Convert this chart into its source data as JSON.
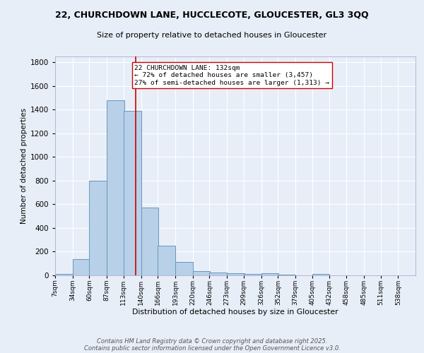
{
  "title_line1": "22, CHURCHDOWN LANE, HUCCLECOTE, GLOUCESTER, GL3 3QQ",
  "title_line2": "Size of property relative to detached houses in Gloucester",
  "xlabel": "Distribution of detached houses by size in Gloucester",
  "ylabel": "Number of detached properties",
  "bin_labels": [
    "7sqm",
    "34sqm",
    "60sqm",
    "87sqm",
    "113sqm",
    "140sqm",
    "166sqm",
    "193sqm",
    "220sqm",
    "246sqm",
    "273sqm",
    "299sqm",
    "326sqm",
    "352sqm",
    "379sqm",
    "405sqm",
    "432sqm",
    "458sqm",
    "485sqm",
    "511sqm",
    "538sqm"
  ],
  "bar_heights": [
    10,
    140,
    800,
    1480,
    1390,
    575,
    250,
    115,
    35,
    25,
    20,
    10,
    15,
    5,
    0,
    10,
    0,
    0,
    0,
    0,
    0
  ],
  "bar_color": "#b8d0e8",
  "bar_edge_color": "#6699bb",
  "vline_x": 132,
  "vline_color": "#cc0000",
  "ylim": [
    0,
    1850
  ],
  "bin_starts": [
    7,
    34,
    60,
    87,
    113,
    140,
    166,
    193,
    220,
    246,
    273,
    299,
    326,
    352,
    379,
    405,
    432,
    458,
    485,
    511,
    538
  ],
  "bin_width": 27,
  "annotation_text": "22 CHURCHDOWN LANE: 132sqm\n← 72% of detached houses are smaller (3,457)\n27% of semi-detached houses are larger (1,313) →",
  "annotation_box_color": "#ffffff",
  "annotation_box_edge": "#cc0000",
  "footnote_line1": "Contains HM Land Registry data © Crown copyright and database right 2025.",
  "footnote_line2": "Contains public sector information licensed under the Open Government Licence v3.0.",
  "bg_color": "#e8eef8",
  "grid_color": "#ffffff",
  "yticks": [
    0,
    200,
    400,
    600,
    800,
    1000,
    1200,
    1400,
    1600,
    1800
  ]
}
